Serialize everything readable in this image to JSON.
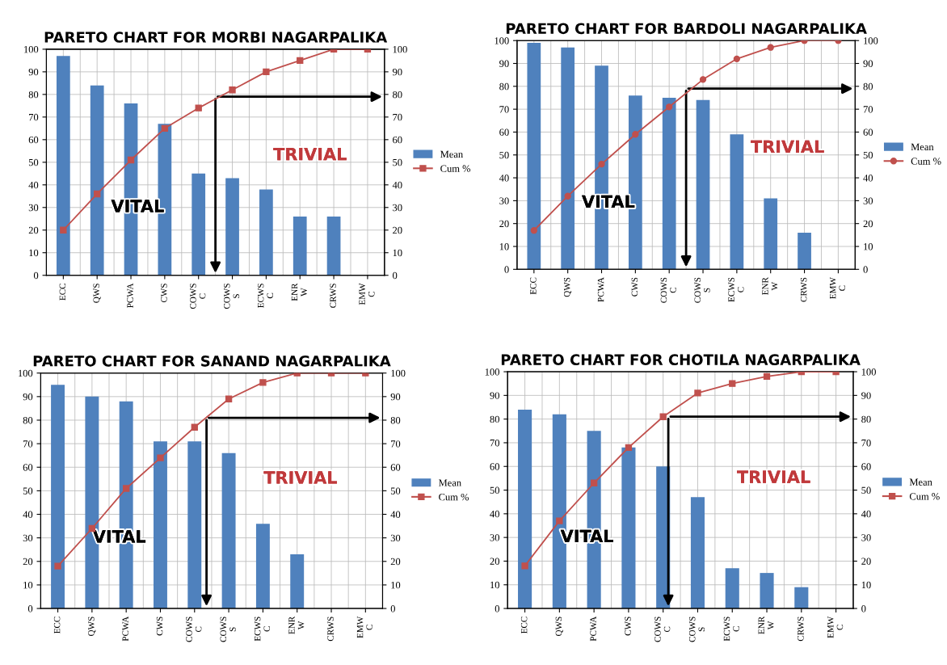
{
  "chart_data": [
    {
      "type": "bar",
      "title": "PARETO CHART FOR MORBI NAGARPALIKA",
      "categories": [
        "ECC",
        "QWS",
        "PCWA",
        "CWS",
        "COWS\nC",
        "COWS\nS",
        "ECWS\nC",
        "ENR\nW",
        "CRWS",
        "EMW\nC"
      ],
      "series": [
        {
          "name": "Mean",
          "color": "#4f81bd",
          "values": [
            97,
            84,
            76,
            67,
            45,
            43,
            38,
            26,
            26,
            0
          ]
        },
        {
          "name": "Cum %",
          "type": "line",
          "axis": "y2",
          "color": "#c0504d",
          "marker": "square",
          "values": [
            20,
            36,
            51,
            65,
            74,
            82,
            90,
            95,
            100,
            100
          ]
        }
      ],
      "ylim": [
        0,
        100
      ],
      "yticks": [
        0,
        10,
        20,
        30,
        40,
        50,
        60,
        70,
        80,
        90,
        100
      ],
      "y2lim": [
        0,
        100
      ],
      "y2ticks": [
        0,
        10,
        20,
        30,
        40,
        50,
        60,
        70,
        80,
        90,
        100
      ],
      "grid": true,
      "legend": "right",
      "annotations": [
        "VITAL",
        "TRIVIAL"
      ]
    },
    {
      "type": "bar",
      "title": "PARETO CHART FOR BARDOLI NAGARPALIKA",
      "categories": [
        "ECC",
        "QWS",
        "PCWA",
        "CWS",
        "COWS\nC",
        "COWS\nS",
        "ECWS\nC",
        "ENR\nW",
        "CRWS",
        "EMW\nC"
      ],
      "series": [
        {
          "name": "Mean",
          "color": "#4f81bd",
          "values": [
            99,
            97,
            89,
            76,
            75,
            74,
            59,
            31,
            16,
            0
          ]
        },
        {
          "name": "Cum %",
          "type": "line",
          "axis": "y2",
          "color": "#c0504d",
          "marker": "circle",
          "values": [
            17,
            32,
            46,
            59,
            71,
            83,
            92,
            97,
            100,
            100
          ]
        }
      ],
      "ylim": [
        0,
        100
      ],
      "yticks": [
        0,
        10,
        20,
        30,
        40,
        50,
        60,
        70,
        80,
        90,
        100
      ],
      "y2lim": [
        0,
        100
      ],
      "y2ticks": [
        0,
        10,
        20,
        30,
        40,
        50,
        60,
        70,
        80,
        90,
        100
      ],
      "grid": true,
      "legend": "right",
      "annotations": [
        "VITAL",
        "TRIVIAL"
      ]
    },
    {
      "type": "bar",
      "title": "PARETO CHART FOR SANAND NAGARPALIKA",
      "categories": [
        "ECC",
        "QWS",
        "PCWA",
        "CWS",
        "COWS\nC",
        "COWS\nS",
        "ECWS\nC",
        "ENR\nW",
        "CRWS",
        "EMW\nC"
      ],
      "series": [
        {
          "name": "Mean",
          "color": "#4f81bd",
          "values": [
            95,
            90,
            88,
            71,
            71,
            66,
            36,
            23,
            0,
            0
          ]
        },
        {
          "name": "Cum %",
          "type": "line",
          "axis": "y2",
          "color": "#c0504d",
          "marker": "square",
          "values": [
            18,
            34,
            51,
            64,
            77,
            89,
            96,
            100,
            100,
            100
          ]
        }
      ],
      "ylim": [
        0,
        100
      ],
      "yticks": [
        0,
        10,
        20,
        30,
        40,
        50,
        60,
        70,
        80,
        90,
        100
      ],
      "y2lim": [
        0,
        100
      ],
      "y2ticks": [
        0,
        10,
        20,
        30,
        40,
        50,
        60,
        70,
        80,
        90,
        100
      ],
      "grid": true,
      "legend": "right",
      "annotations": [
        "VITAL",
        "TRIVIAL"
      ]
    },
    {
      "type": "bar",
      "title": "PARETO CHART FOR CHOTILA NAGARPALIKA",
      "categories": [
        "ECC",
        "QWS",
        "PCWA",
        "CWS",
        "COWS\nC",
        "COWS\nS",
        "ECWS\nC",
        "ENR\nW",
        "CRWS",
        "EMW\nC"
      ],
      "series": [
        {
          "name": "Mean",
          "color": "#4f81bd",
          "values": [
            84,
            82,
            75,
            68,
            60,
            47,
            17,
            15,
            9,
            0
          ]
        },
        {
          "name": "Cum %",
          "type": "line",
          "axis": "y2",
          "color": "#c0504d",
          "marker": "square",
          "values": [
            18,
            37,
            53,
            68,
            81,
            91,
            95,
            98,
            100,
            100
          ]
        }
      ],
      "ylim": [
        0,
        100
      ],
      "yticks": [
        0,
        10,
        20,
        30,
        40,
        50,
        60,
        70,
        80,
        90,
        100
      ],
      "y2lim": [
        0,
        100
      ],
      "y2ticks": [
        0,
        10,
        20,
        30,
        40,
        50,
        60,
        70,
        80,
        90,
        100
      ],
      "grid": true,
      "legend": "right",
      "annotations": [
        "VITAL",
        "TRIVIAL"
      ]
    }
  ]
}
